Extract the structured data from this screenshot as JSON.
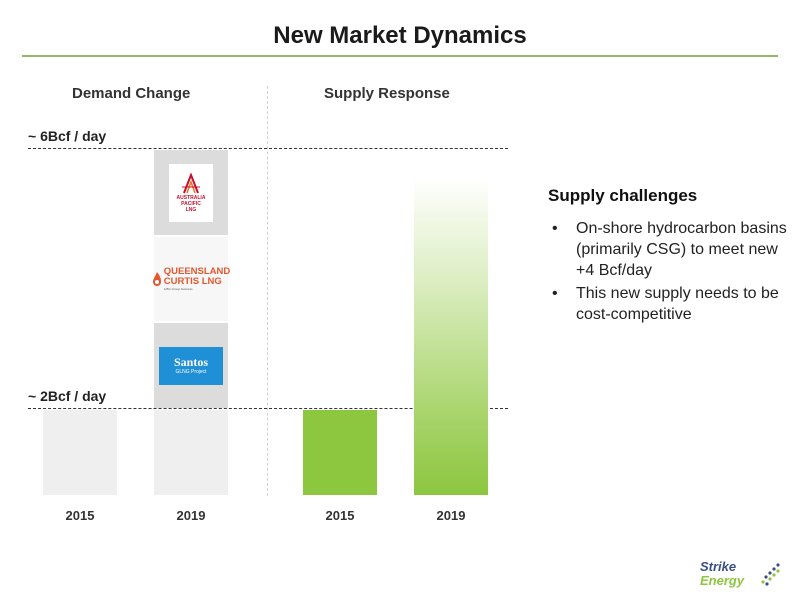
{
  "title": "New Market Dynamics",
  "sections": {
    "demand": "Demand Change",
    "supply": "Supply Response"
  },
  "levels": {
    "high": "~ 6Bcf / day",
    "low": "~ 2Bcf / day"
  },
  "demand_years": [
    "2015",
    "2019"
  ],
  "supply_years": [
    "2015",
    "2019"
  ],
  "logos": {
    "aplng": {
      "lines": [
        "AUSTRALIA",
        "PACIFIC",
        "LNG"
      ]
    },
    "qclng": {
      "name": "QUEENSLAND",
      "name2": "CURTIS LNG",
      "tag": "A BG Group business"
    },
    "santos": {
      "name": "Santos",
      "project": "GLNG Project"
    }
  },
  "brand": {
    "line1": "Strike",
    "line2": "Energy"
  },
  "challenges": {
    "heading": "Supply challenges",
    "items": [
      "On-shore hydrocarbon basins (primarily CSG) to meet new +4 Bcf/day",
      "This new supply needs to be cost-competitive"
    ]
  },
  "colors": {
    "accent": "#8dc63f",
    "rule": "#9ab36a",
    "bar_grey": "#efefef",
    "logo_bg": "#dcdcdc",
    "santos_blue": "#1f8fd6"
  }
}
